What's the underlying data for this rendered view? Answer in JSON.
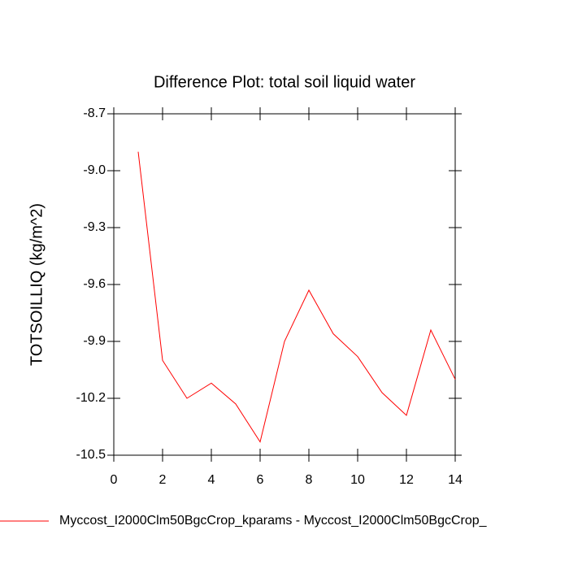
{
  "chart_data": {
    "type": "line",
    "title": "Difference Plot: total soil liquid water",
    "y_label": "TOTSOILLIQ  (kg/m^2)",
    "x": [
      1,
      2,
      3,
      4,
      5,
      6,
      7,
      8,
      9,
      10,
      11,
      12,
      13,
      14
    ],
    "series": [
      {
        "name": "Myccost_I2000Clm50BgcCrop_kparams - Myccost_I2000Clm50BgcCrop_",
        "color": "#ff0000",
        "values": [
          -8.9,
          -10.0,
          -10.2,
          -10.12,
          -10.23,
          -10.43,
          -9.9,
          -9.63,
          -9.86,
          -9.98,
          -10.17,
          -10.29,
          -9.84,
          -10.1
        ]
      }
    ],
    "xlim": [
      0,
      14
    ],
    "xticks": [
      0,
      2,
      4,
      6,
      8,
      10,
      12,
      14
    ],
    "ylim": [
      -10.5,
      -8.7
    ],
    "yticks": [
      -10.5,
      -10.2,
      -9.9,
      -9.6,
      -9.3,
      {
        "value": -9,
        "label": "-9.0"
      },
      -8.7
    ],
    "grid": false
  }
}
